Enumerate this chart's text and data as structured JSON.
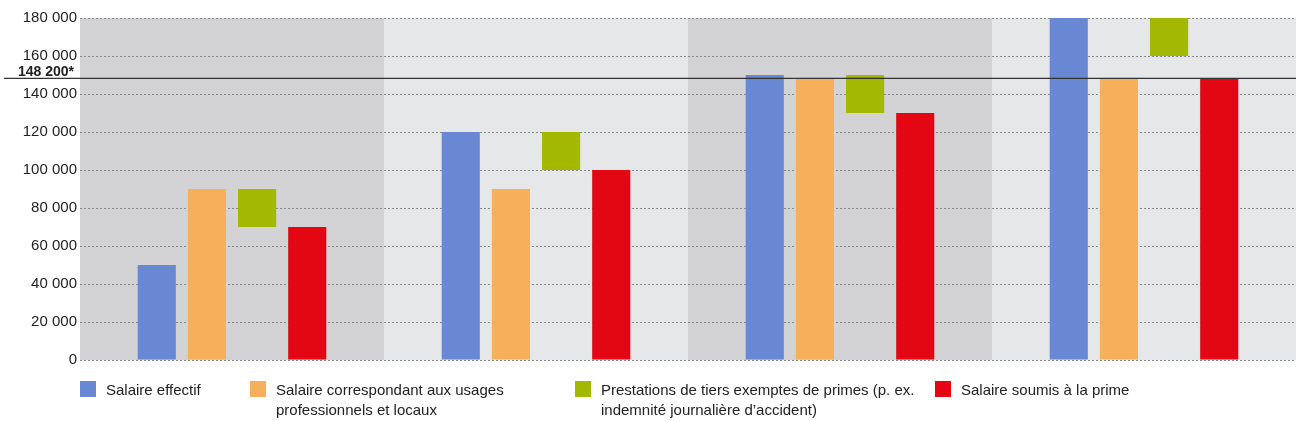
{
  "chart_data": {
    "type": "bar",
    "categories": [
      null,
      null,
      null,
      null
    ],
    "series": [
      {
        "name": "Salaire effectif",
        "color": "#6a87d3",
        "values": [
          50000,
          120000,
          150000,
          180000
        ]
      },
      {
        "name": "Salaire correspondant aux usages professionnels et locaux",
        "color": "#f6b05c",
        "values": [
          90000,
          90000,
          148200,
          148200
        ]
      },
      {
        "name": "Prestations de tiers exemptes de primes (p. ex. indemnité journalière d’accident)",
        "color": "#a3b800",
        "base": [
          70000,
          100000,
          130000,
          160000
        ],
        "values": [
          20000,
          20000,
          20000,
          20000
        ]
      },
      {
        "name": "Salaire soumis à la prime",
        "color": "#e30613",
        "values": [
          70000,
          100000,
          130000,
          148200
        ]
      }
    ],
    "ylim": [
      0,
      180000
    ],
    "yticks": [
      0,
      {
        "value": 20000,
        "label": "20 000"
      },
      {
        "value": 40000,
        "label": "40 000"
      },
      {
        "value": 60000,
        "label": "60 000"
      },
      {
        "value": 80000,
        "label": "80 000"
      },
      {
        "value": 100000,
        "label": "100 000"
      },
      {
        "value": 120000,
        "label": "120 000"
      },
      {
        "value": 140000,
        "label": "140 000"
      },
      {
        "value": 160000,
        "label": "160 000"
      },
      {
        "value": 180000,
        "label": "180 000"
      }
    ],
    "ref_lines": [
      {
        "axis": "y",
        "value": 148200,
        "label": "148 200*",
        "color": "#333333"
      }
    ],
    "grid": "y",
    "legend": "bottom",
    "tick_labels": "y"
  }
}
